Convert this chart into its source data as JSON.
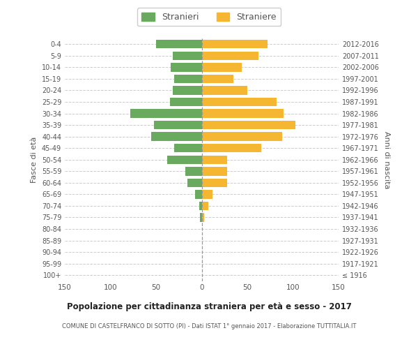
{
  "age_groups": [
    "100+",
    "95-99",
    "90-94",
    "85-89",
    "80-84",
    "75-79",
    "70-74",
    "65-69",
    "60-64",
    "55-59",
    "50-54",
    "45-49",
    "40-44",
    "35-39",
    "30-34",
    "25-29",
    "20-24",
    "15-19",
    "10-14",
    "5-9",
    "0-4"
  ],
  "birth_years": [
    "≤ 1916",
    "1917-1921",
    "1922-1926",
    "1927-1931",
    "1932-1936",
    "1937-1941",
    "1942-1946",
    "1947-1951",
    "1952-1956",
    "1957-1961",
    "1962-1966",
    "1967-1971",
    "1972-1976",
    "1977-1981",
    "1982-1986",
    "1987-1991",
    "1992-1996",
    "1997-2001",
    "2002-2006",
    "2007-2011",
    "2012-2016"
  ],
  "males": [
    0,
    0,
    0,
    0,
    0,
    2,
    3,
    7,
    16,
    18,
    38,
    30,
    55,
    52,
    78,
    35,
    32,
    30,
    34,
    32,
    50
  ],
  "females": [
    0,
    0,
    0,
    0,
    0,
    3,
    7,
    12,
    28,
    28,
    28,
    65,
    88,
    103,
    90,
    82,
    50,
    35,
    44,
    62,
    72
  ],
  "male_color": "#6aaa5e",
  "female_color": "#f5b731",
  "text_color": "#555555",
  "title": "Popolazione per cittadinanza straniera per età e sesso - 2017",
  "subtitle": "COMUNE DI CASTELFRANCO DI SOTTO (PI) - Dati ISTAT 1° gennaio 2017 - Elaborazione TUTTITALIA.IT",
  "ylabel_left": "Fasce di età",
  "ylabel_right": "Anni di nascita",
  "legend_male": "Stranieri",
  "legend_female": "Straniere",
  "xlim": 150,
  "background_color": "#ffffff",
  "bar_height": 0.75
}
